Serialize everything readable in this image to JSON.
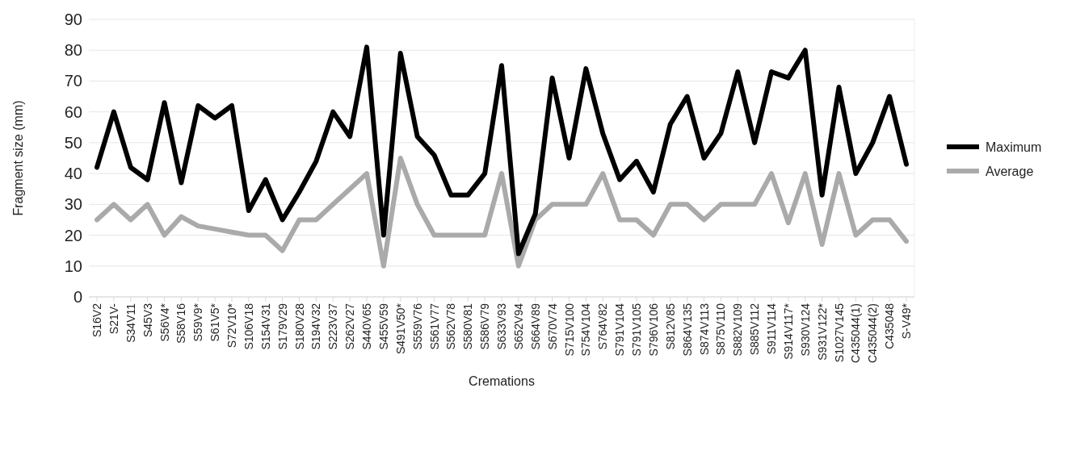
{
  "chart_data": {
    "type": "line",
    "xlabel": "Cremations",
    "ylabel": "Fragment size (mm)",
    "categories": [
      "S16V2",
      "S21V-",
      "S34V11",
      "S45V3",
      "S56V4*",
      "S58V16",
      "S59V9*",
      "S61V5*",
      "S72V10*",
      "S106V18",
      "S154V31",
      "S179V29",
      "S180V28",
      "S194V32",
      "S223V37",
      "S262V27",
      "S440V65",
      "S455V59",
      "S491V50*",
      "S559V76",
      "S561V77",
      "S562V78",
      "S580V81",
      "S586V79",
      "S633V93",
      "S652V94",
      "S664V89",
      "S670V74",
      "S715V100",
      "S754V104",
      "S764V82",
      "S791V104",
      "S791V105",
      "S796V106",
      "S812V85",
      "S864V135",
      "S874V113",
      "S875V110",
      "S882V109",
      "S885V112",
      "S911V114",
      "S914V117*",
      "S930V124",
      "S931V122*",
      "S1027V145",
      "C435044(1)",
      "C435044(2)",
      "C435048",
      "S-V49*"
    ],
    "series": [
      {
        "name": "Maximum",
        "color": "#000000",
        "values": [
          42,
          60,
          42,
          38,
          63,
          37,
          62,
          58,
          62,
          28,
          38,
          25,
          34,
          44,
          60,
          52,
          81,
          20,
          79,
          52,
          46,
          33,
          33,
          40,
          75,
          14,
          27,
          71,
          45,
          74,
          53,
          38,
          44,
          34,
          56,
          65,
          45,
          53,
          73,
          50,
          73,
          71,
          80,
          33,
          68,
          40,
          50,
          65,
          43
        ]
      },
      {
        "name": "Average",
        "color": "#aaaaaa",
        "values": [
          25,
          30,
          25,
          30,
          20,
          26,
          23,
          22,
          21,
          20,
          20,
          15,
          25,
          25,
          30,
          35,
          40,
          10,
          45,
          30,
          20,
          20,
          20,
          20,
          40,
          10,
          25,
          30,
          30,
          30,
          40,
          25,
          25,
          20,
          30,
          30,
          25,
          30,
          30,
          30,
          40,
          24,
          40,
          17,
          40,
          20,
          25,
          25,
          18
        ]
      }
    ],
    "ylim": [
      0,
      90
    ],
    "yticks": [
      0,
      10,
      20,
      30,
      40,
      50,
      60,
      70,
      80,
      90
    ],
    "grid": "y",
    "legend": "right",
    "marker": "none",
    "line_style": "solid"
  }
}
